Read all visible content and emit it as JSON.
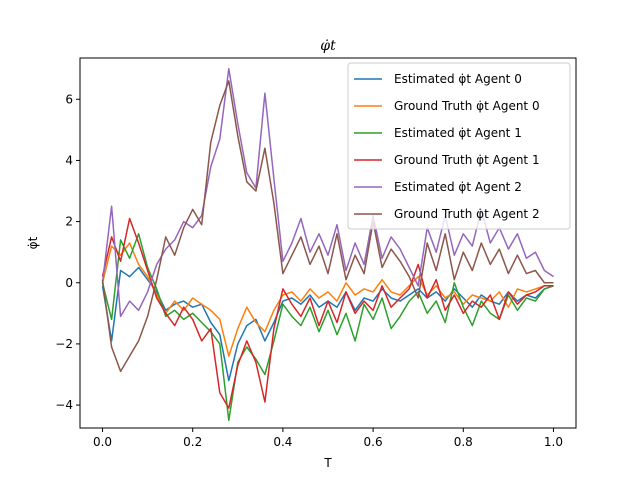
{
  "chart_data": {
    "type": "line",
    "title": "φ̇t",
    "xlabel": "T",
    "ylabel": "φ̇t",
    "xlim": [
      -0.05,
      1.05
    ],
    "ylim": [
      -4.75,
      7.35
    ],
    "xticks": [
      0.0,
      0.2,
      0.4,
      0.6,
      0.8,
      1.0
    ],
    "xtick_labels": [
      "0.0",
      "0.2",
      "0.4",
      "0.6",
      "0.8",
      "1.0"
    ],
    "yticks": [
      -4,
      -2,
      0,
      2,
      4,
      6
    ],
    "ytick_labels": [
      "−4",
      "−2",
      "0",
      "2",
      "4",
      "6"
    ],
    "grid": false,
    "legend_position": "top-right",
    "series": [
      {
        "name": "Estimated φ̇t Agent 0",
        "color": "#1f77b4",
        "x": [
          0.0,
          0.02,
          0.04,
          0.06,
          0.08,
          0.1,
          0.12,
          0.14,
          0.16,
          0.18,
          0.2,
          0.22,
          0.24,
          0.26,
          0.28,
          0.3,
          0.32,
          0.34,
          0.36,
          0.38,
          0.4,
          0.42,
          0.44,
          0.46,
          0.48,
          0.5,
          0.52,
          0.54,
          0.56,
          0.58,
          0.6,
          0.62,
          0.64,
          0.66,
          0.68,
          0.7,
          0.72,
          0.74,
          0.76,
          0.78,
          0.8,
          0.82,
          0.84,
          0.86,
          0.88,
          0.9,
          0.92,
          0.94,
          0.96,
          0.98,
          1.0
        ],
        "y": [
          -0.1,
          -1.9,
          0.4,
          0.2,
          0.5,
          0.1,
          -0.3,
          -0.9,
          -0.7,
          -0.6,
          -0.8,
          -0.7,
          -1.3,
          -1.7,
          -3.2,
          -2.0,
          -1.4,
          -1.2,
          -1.9,
          -1.3,
          -0.6,
          -0.5,
          -0.7,
          -0.4,
          -0.8,
          -0.6,
          -0.8,
          -0.3,
          -0.9,
          -0.5,
          -0.6,
          -0.2,
          -0.5,
          -0.6,
          -0.4,
          -0.2,
          -0.5,
          -0.3,
          -0.6,
          -0.2,
          -0.5,
          -0.8,
          -0.4,
          -0.6,
          -0.7,
          -0.3,
          -0.6,
          -0.4,
          -0.5,
          -0.2,
          -0.1
        ]
      },
      {
        "name": "Ground Truth φ̇t Agent 0",
        "color": "#ff7f0e",
        "x": [
          0.0,
          0.02,
          0.04,
          0.06,
          0.08,
          0.1,
          0.12,
          0.14,
          0.16,
          0.18,
          0.2,
          0.22,
          0.24,
          0.26,
          0.28,
          0.3,
          0.32,
          0.34,
          0.36,
          0.38,
          0.4,
          0.42,
          0.44,
          0.46,
          0.48,
          0.5,
          0.52,
          0.54,
          0.56,
          0.58,
          0.6,
          0.62,
          0.64,
          0.66,
          0.68,
          0.7,
          0.72,
          0.74,
          0.76,
          0.78,
          0.8,
          0.82,
          0.84,
          0.86,
          0.88,
          0.9,
          0.92,
          0.94,
          0.96,
          0.98,
          1.0
        ],
        "y": [
          0.0,
          1.2,
          0.9,
          1.3,
          0.6,
          0.2,
          -0.4,
          -1.0,
          -0.6,
          -0.9,
          -0.5,
          -0.7,
          -0.9,
          -1.2,
          -2.4,
          -1.5,
          -0.8,
          -1.3,
          -1.6,
          -0.9,
          -0.4,
          -0.3,
          -0.6,
          -0.2,
          -0.5,
          -0.3,
          -0.6,
          0.0,
          -0.4,
          -0.2,
          -0.3,
          0.1,
          -0.3,
          -0.4,
          -0.1,
          0.2,
          -0.4,
          -0.1,
          -0.5,
          -0.3,
          -0.7,
          -0.4,
          -0.5,
          -0.6,
          -0.3,
          -0.8,
          -0.2,
          -0.3,
          -0.2,
          -0.1,
          -0.1
        ]
      },
      {
        "name": "Estimated φ̇t Agent 1",
        "color": "#2ca02c",
        "x": [
          0.0,
          0.02,
          0.04,
          0.06,
          0.08,
          0.1,
          0.12,
          0.14,
          0.16,
          0.18,
          0.2,
          0.22,
          0.24,
          0.26,
          0.28,
          0.3,
          0.32,
          0.34,
          0.36,
          0.38,
          0.4,
          0.42,
          0.44,
          0.46,
          0.48,
          0.5,
          0.52,
          0.54,
          0.56,
          0.58,
          0.6,
          0.62,
          0.64,
          0.66,
          0.68,
          0.7,
          0.72,
          0.74,
          0.76,
          0.78,
          0.8,
          0.82,
          0.84,
          0.86,
          0.88,
          0.9,
          0.92,
          0.94,
          0.96,
          0.98,
          1.0
        ],
        "y": [
          0.0,
          -1.2,
          1.4,
          0.8,
          1.6,
          0.5,
          -0.2,
          -1.1,
          -0.9,
          -1.2,
          -1.0,
          -1.3,
          -1.6,
          -2.0,
          -4.5,
          -2.6,
          -2.1,
          -2.5,
          -3.0,
          -1.9,
          -0.7,
          -1.1,
          -1.4,
          -0.8,
          -1.6,
          -0.9,
          -1.7,
          -1.0,
          -1.9,
          -0.7,
          -1.2,
          -0.5,
          -1.5,
          -1.1,
          -0.6,
          -0.3,
          -1.0,
          -0.6,
          -1.3,
          0.0,
          -0.8,
          -1.4,
          -0.6,
          -1.0,
          -1.2,
          -0.4,
          -0.9,
          -0.5,
          -0.6,
          -0.2,
          -0.1
        ]
      },
      {
        "name": "Ground Truth φ̇t Agent 1",
        "color": "#d62728",
        "x": [
          0.0,
          0.02,
          0.04,
          0.06,
          0.08,
          0.1,
          0.12,
          0.14,
          0.16,
          0.18,
          0.2,
          0.22,
          0.24,
          0.26,
          0.28,
          0.3,
          0.32,
          0.34,
          0.36,
          0.38,
          0.4,
          0.42,
          0.44,
          0.46,
          0.48,
          0.5,
          0.52,
          0.54,
          0.56,
          0.58,
          0.6,
          0.62,
          0.64,
          0.66,
          0.68,
          0.7,
          0.72,
          0.74,
          0.76,
          0.78,
          0.8,
          0.82,
          0.84,
          0.86,
          0.88,
          0.9,
          0.92,
          0.94,
          0.96,
          0.98,
          1.0
        ],
        "y": [
          0.2,
          1.5,
          0.7,
          2.1,
          1.3,
          0.4,
          -0.5,
          -1.0,
          -1.4,
          -0.8,
          -1.2,
          -1.9,
          -1.5,
          -3.6,
          -4.1,
          -2.7,
          -1.9,
          -2.6,
          -3.9,
          -1.5,
          -0.2,
          -0.7,
          -1.1,
          -0.5,
          -1.4,
          -0.6,
          -1.3,
          -0.3,
          -1.0,
          -0.6,
          -0.9,
          -0.1,
          -0.8,
          -0.5,
          -0.2,
          0.6,
          -0.5,
          0.1,
          -0.9,
          -0.4,
          -1.0,
          -0.6,
          -0.8,
          -0.4,
          -1.2,
          -0.3,
          -0.7,
          -0.4,
          -0.3,
          -0.1,
          -0.1
        ]
      },
      {
        "name": "Estimated φ̇t Agent 2",
        "color": "#9467bd",
        "x": [
          0.0,
          0.02,
          0.04,
          0.06,
          0.08,
          0.1,
          0.12,
          0.14,
          0.16,
          0.18,
          0.2,
          0.22,
          0.24,
          0.26,
          0.28,
          0.3,
          0.32,
          0.34,
          0.36,
          0.38,
          0.4,
          0.42,
          0.44,
          0.46,
          0.48,
          0.5,
          0.52,
          0.54,
          0.56,
          0.58,
          0.6,
          0.62,
          0.64,
          0.66,
          0.68,
          0.7,
          0.72,
          0.74,
          0.76,
          0.78,
          0.8,
          0.82,
          0.84,
          0.86,
          0.88,
          0.9,
          0.92,
          0.94,
          0.96,
          0.98,
          1.0
        ],
        "y": [
          0.0,
          2.5,
          -1.1,
          -0.6,
          -0.9,
          -0.3,
          0.6,
          1.1,
          1.4,
          2.0,
          1.8,
          2.2,
          3.8,
          4.7,
          7.0,
          5.2,
          3.6,
          3.1,
          6.2,
          3.4,
          0.7,
          1.3,
          2.1,
          1.0,
          1.6,
          0.9,
          1.9,
          0.4,
          1.3,
          0.6,
          2.2,
          0.8,
          1.5,
          1.1,
          0.5,
          -0.1,
          1.8,
          1.0,
          2.2,
          0.9,
          1.6,
          1.2,
          2.4,
          1.3,
          1.8,
          1.1,
          1.6,
          0.8,
          1.0,
          0.4,
          0.2
        ]
      },
      {
        "name": "Ground Truth φ̇t Agent 2",
        "color": "#8c564b",
        "x": [
          0.0,
          0.02,
          0.04,
          0.06,
          0.08,
          0.1,
          0.12,
          0.14,
          0.16,
          0.18,
          0.2,
          0.22,
          0.24,
          0.26,
          0.28,
          0.3,
          0.32,
          0.34,
          0.36,
          0.38,
          0.4,
          0.42,
          0.44,
          0.46,
          0.48,
          0.5,
          0.52,
          0.54,
          0.56,
          0.58,
          0.6,
          0.62,
          0.64,
          0.66,
          0.68,
          0.7,
          0.72,
          0.74,
          0.76,
          0.78,
          0.8,
          0.82,
          0.84,
          0.86,
          0.88,
          0.9,
          0.92,
          0.94,
          0.96,
          0.98,
          1.0
        ],
        "y": [
          0.1,
          -2.1,
          -2.9,
          -2.4,
          -1.9,
          -1.1,
          0.1,
          1.5,
          0.9,
          1.8,
          2.4,
          1.9,
          4.6,
          5.8,
          6.6,
          4.8,
          3.3,
          3.0,
          4.4,
          2.6,
          0.3,
          0.9,
          1.5,
          0.6,
          1.2,
          0.3,
          1.6,
          0.1,
          0.9,
          0.3,
          2.0,
          0.5,
          1.1,
          0.7,
          0.2,
          -0.5,
          1.3,
          0.4,
          1.6,
          0.1,
          1.0,
          0.4,
          1.3,
          0.6,
          1.1,
          0.3,
          0.9,
          0.3,
          0.4,
          0.0,
          0.0
        ]
      }
    ]
  }
}
